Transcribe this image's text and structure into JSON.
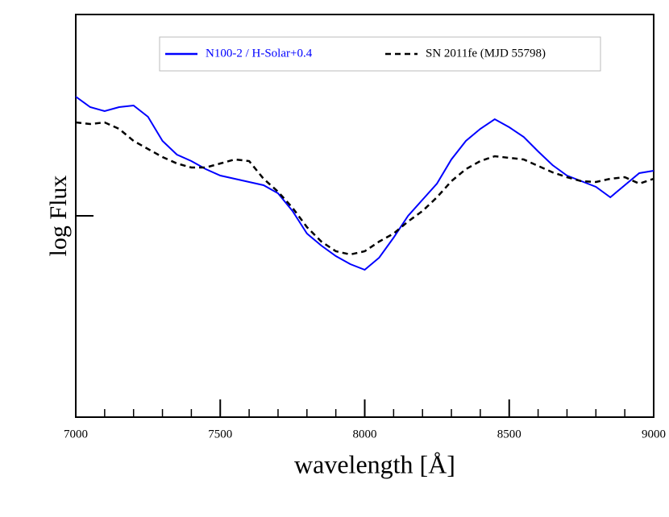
{
  "chart_data": {
    "type": "line",
    "x_label": "wavelength [Å]",
    "y_label": "log Flux",
    "x": [
      7000,
      7050,
      7100,
      7150,
      7200,
      7250,
      7300,
      7350,
      7400,
      7450,
      7500,
      7550,
      7600,
      7650,
      7700,
      7750,
      7800,
      7850,
      7900,
      7950,
      8000,
      8050,
      8100,
      8150,
      8200,
      8250,
      8300,
      8350,
      8400,
      8450,
      8500,
      8550,
      8600,
      8650,
      8700,
      8750,
      8800,
      8850,
      8900,
      8950,
      9000
    ],
    "xlim": [
      7000,
      9000
    ],
    "xticks": [
      7000,
      7500,
      8000,
      8500,
      9000
    ],
    "ylim": [
      0,
      10
    ],
    "series": [
      {
        "name": "N100-2 / H-Solar+0.4",
        "color": "#0000ff",
        "style": "solid",
        "values": [
          7.96,
          7.7,
          7.6,
          7.7,
          7.74,
          7.46,
          6.86,
          6.52,
          6.36,
          6.16,
          6.0,
          5.92,
          5.84,
          5.76,
          5.56,
          5.12,
          4.56,
          4.26,
          4.0,
          3.8,
          3.66,
          3.96,
          4.46,
          5.0,
          5.4,
          5.8,
          6.4,
          6.86,
          7.16,
          7.4,
          7.2,
          6.96,
          6.6,
          6.26,
          6.0,
          5.86,
          5.72,
          5.46,
          5.76,
          6.06,
          6.12
        ]
      },
      {
        "name": "SN 2011fe (MJD 55798)",
        "color": "#000000",
        "style": "dashed",
        "values": [
          7.32,
          7.28,
          7.32,
          7.16,
          6.86,
          6.66,
          6.46,
          6.3,
          6.2,
          6.2,
          6.3,
          6.4,
          6.36,
          5.92,
          5.6,
          5.2,
          4.72,
          4.36,
          4.12,
          4.04,
          4.12,
          4.36,
          4.56,
          4.86,
          5.12,
          5.46,
          5.86,
          6.16,
          6.36,
          6.48,
          6.44,
          6.4,
          6.24,
          6.08,
          5.96,
          5.86,
          5.84,
          5.92,
          5.96,
          5.8,
          5.92
        ]
      }
    ]
  }
}
